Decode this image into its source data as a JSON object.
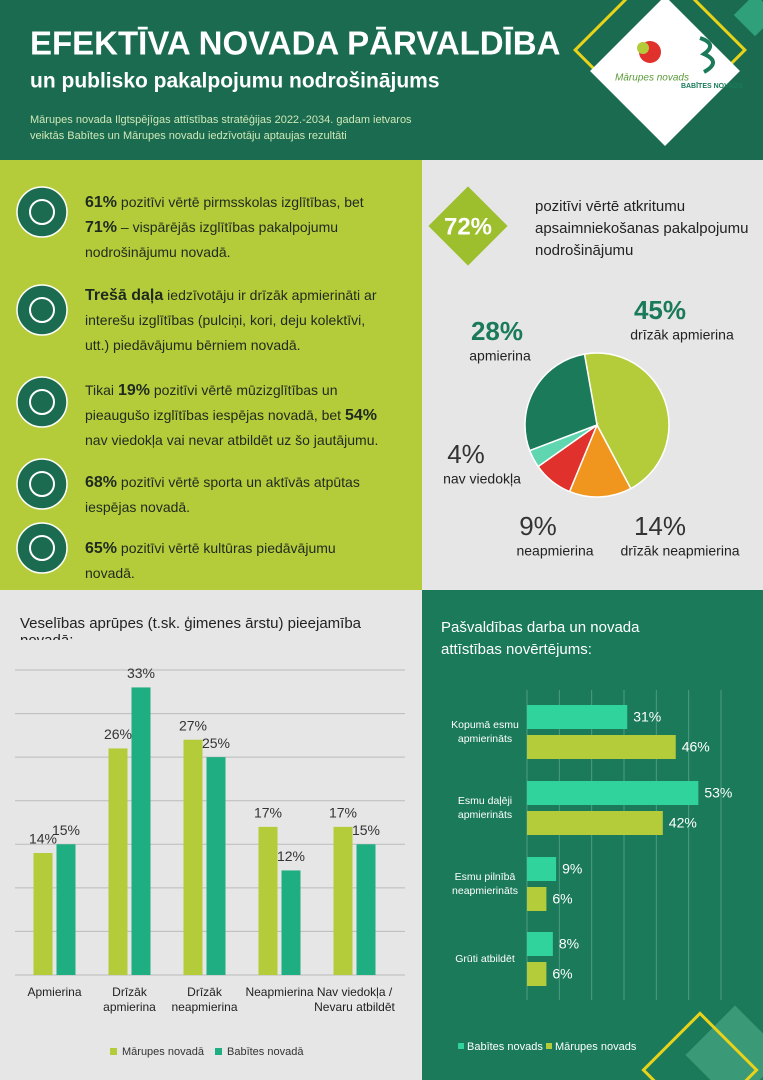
{
  "header": {
    "title": "EFEKTĪVA NOVADA PĀRVALDĪBA",
    "subtitle": "un publisko pakalpojumu nodrošinājums",
    "description": "Mārupes novada Ilgtspējīgas attīstības stratēģijas 2022.-2034. gadam ietvaros veiktās Babītes un Mārupes novadu iedzīvotāju aptaujas rezultāti",
    "logos": [
      "Mārupes novads",
      "BABĪTES NOVADS"
    ]
  },
  "highlights": [
    {
      "segments": [
        {
          "text": "61%",
          "bold": true
        },
        {
          "text": " pozitīvi vērtē pirmsskolas izglītības, bet "
        },
        {
          "text": "71%",
          "bold": true
        },
        {
          "text": " – vispārējās izglītības pakalpojumu nodrošinājumu novadā."
        }
      ]
    },
    {
      "segments": [
        {
          "text": "Trešā daļa",
          "bold": true
        },
        {
          "text": " iedzīvotāju ir drīzāk apmierināti ar interešu izglītības (pulciņi, kori, deju kolektīvi, utt.) piedāvājumu bērniem novadā."
        }
      ]
    },
    {
      "segments": [
        {
          "text": "Tikai "
        },
        {
          "text": "19%",
          "bold": true
        },
        {
          "text": " pozitīvi vērtē mūzizglītības un pieaugušo izglītības iespējas novadā, bet "
        },
        {
          "text": "54%",
          "bold": true
        },
        {
          "text": " nav viedokļa vai nevar atbildēt uz šo jautājumu."
        }
      ]
    },
    {
      "segments": [
        {
          "text": "68%",
          "bold": true
        },
        {
          "text": " pozitīvi vērtē sporta un aktīvās atpūtas iespējas novadā."
        }
      ]
    },
    {
      "segments": [
        {
          "text": "65%",
          "bold": true
        },
        {
          "text": " pozitīvi vērtē kultūras piedāvājumu novadā."
        }
      ]
    }
  ],
  "chart_data": [
    {
      "type": "pie",
      "badge": "72%",
      "title": "pozitīvi vērtē atkritumu apsaimniekošanas pakalpojumu nodrošinājumu",
      "categories": [
        "drīzāk apmierina",
        "drīzāk neapmierina",
        "neapmierina",
        "nav viedokļa",
        "apmierina"
      ],
      "values": [
        45,
        14,
        9,
        4,
        28
      ],
      "value_labels": [
        "45%",
        "14%",
        "9%",
        "4%",
        "28%"
      ],
      "colors": [
        "#b5cc3a",
        "#f0961e",
        "#e0312c",
        "#5fd6b0",
        "#1a7a5a"
      ]
    },
    {
      "type": "bar",
      "title": "Veselības aprūpes (t.sk. ģimenes ārstu) pieejamība novadā:",
      "categories": [
        "Apmierina",
        "Drīzāk apmierina",
        "Drīzāk neapmierina",
        "Neapmierina",
        "Nav viedokļa / Nevaru atbildēt"
      ],
      "series": [
        {
          "name": "Mārupes novadā",
          "color": "#b5cc3a",
          "values": [
            14,
            26,
            27,
            17,
            17
          ],
          "value_labels": [
            "14%",
            "26%",
            "27%",
            "17%",
            "17%"
          ]
        },
        {
          "name": "Babītes novadā",
          "color": "#1fae82",
          "values": [
            15,
            33,
            25,
            12,
            15
          ],
          "value_labels": [
            "15%",
            "33%",
            "25%",
            "12%",
            "15%"
          ]
        }
      ],
      "ylim": [
        0,
        35
      ],
      "yticks": [
        0,
        5,
        10,
        15,
        20,
        25,
        30,
        35
      ],
      "grid": true
    },
    {
      "type": "barh",
      "title": "Pašvaldības darba un novada attīstības novērtējums:",
      "categories": [
        "Kopumā esmu apmierināts",
        "Esmu daļēji apmierināts",
        "Esmu pilnībā neapmierināts",
        "Grūti atbildēt"
      ],
      "series": [
        {
          "name": "Babītes novads",
          "color": "#2fd39b",
          "values": [
            31,
            53,
            9,
            8
          ],
          "value_labels": [
            "31%",
            "53%",
            "9%",
            "8%"
          ]
        },
        {
          "name": "Mārupes novads",
          "color": "#b5cc3a",
          "values": [
            46,
            42,
            6,
            6
          ],
          "value_labels": [
            "46%",
            "42%",
            "6%",
            "6%"
          ]
        }
      ],
      "xlim": [
        0,
        60
      ],
      "xticks": [
        0,
        10,
        20,
        30,
        40,
        50,
        60
      ],
      "grid": true
    }
  ]
}
